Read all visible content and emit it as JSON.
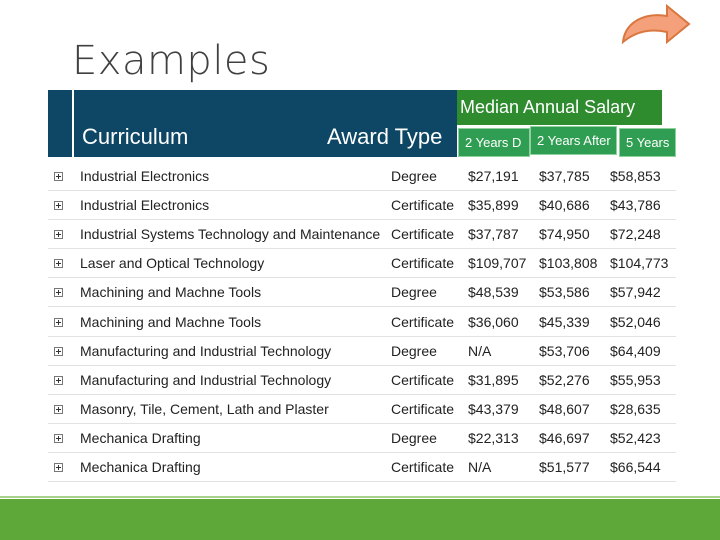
{
  "header": {
    "title": "Examples"
  },
  "table": {
    "columns": [
      "Curriculum",
      "Award Type"
    ],
    "group_header": "Median Annual Salary",
    "sub_columns": [
      "2 Years D",
      "2 Years After",
      "5 Years"
    ],
    "rows": [
      [
        "Industrial Electronics",
        "Degree",
        "$27,191",
        "$37,785",
        "$58,853"
      ],
      [
        "Industrial Electronics",
        "Certificate",
        "$35,899",
        "$40,686",
        "$43,786"
      ],
      [
        "Industrial Systems Technology and Maintenance",
        "Certificate",
        "$37,787",
        "$74,950",
        "$72,248"
      ],
      [
        "Laser and Optical Technology",
        "Certificate",
        "$109,707",
        "$103,808",
        "$104,773"
      ],
      [
        "Machining and Machne Tools",
        "Degree",
        "$48,539",
        "$53,586",
        "$57,942"
      ],
      [
        "Machining and Machne Tools",
        "Certificate",
        "$36,060",
        "$45,339",
        "$52,046"
      ],
      [
        "Manufacturing and Industrial Technology",
        "Degree",
        "N/A",
        "$53,706",
        "$64,409"
      ],
      [
        "Manufacturing and Industrial Technology",
        "Certificate",
        "$31,895",
        "$52,276",
        "$55,953"
      ],
      [
        "Masonry, Tile, Cement, Lath and Plaster",
        "Certificate",
        "$43,379",
        "$48,607",
        "$28,635"
      ],
      [
        "Mechanica Drafting",
        "Degree",
        "$22,313",
        "$46,697",
        "$52,423"
      ],
      [
        "Mechanica Drafting",
        "Certificate",
        "N/A",
        "$51,577",
        "$66,544"
      ]
    ]
  }
}
